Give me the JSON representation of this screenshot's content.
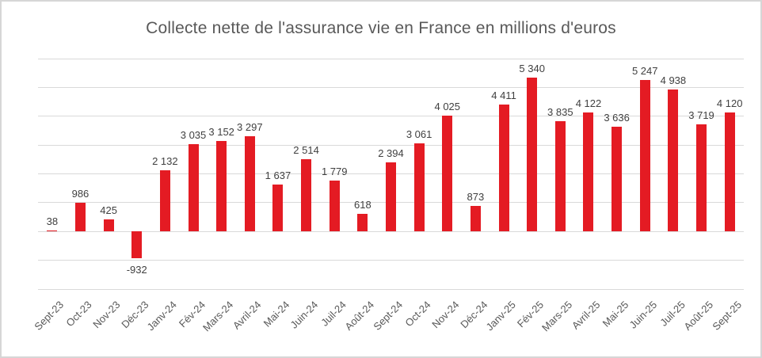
{
  "chart_data": {
    "type": "bar",
    "title": "Collecte nette de l'assurance vie en France en millions d'euros",
    "categories": [
      "Sept-23",
      "Oct-23",
      "Nov-23",
      "Déc-23",
      "Janv-24",
      "Fév-24",
      "Mars-24",
      "Avril-24",
      "Mai-24",
      "Juin-24",
      "Juil-24",
      "Août-24",
      "Sept-24",
      "Oct-24",
      "Nov-24",
      "Déc-24",
      "Janv-25",
      "Fév-25",
      "Mars-25",
      "Avril-25",
      "Mai-25",
      "Juin-25",
      "Juil-25",
      "Août-25",
      "Sept-25"
    ],
    "values": [
      38,
      986,
      425,
      -932,
      2132,
      3035,
      3152,
      3297,
      1637,
      2514,
      1779,
      618,
      2394,
      3061,
      4025,
      873,
      4411,
      5340,
      3835,
      4122,
      3636,
      5247,
      4938,
      3719,
      4120
    ],
    "value_labels": [
      "38",
      "986",
      "425",
      "-932",
      "2 132",
      "3 035",
      "3 152",
      "3 297",
      "1 637",
      "2 514",
      "1 779",
      "618",
      "2 394",
      "3 061",
      "4 025",
      "873",
      "4 411",
      "5 340",
      "3 835",
      "4 122",
      "3 636",
      "5 247",
      "4 938",
      "3 719",
      "4 120"
    ],
    "xlabel": "",
    "ylabel": "",
    "ylim": [
      -2000,
      6000
    ],
    "grid_step": 1000,
    "grid": true,
    "legend_position": "none",
    "y_tick_labels_visible": false,
    "bar_color": "#e41b23",
    "gridline_color": "#d9d9d9",
    "title_color": "#595959",
    "value_label_color": "#404040",
    "axis_label_color": "#595959"
  }
}
